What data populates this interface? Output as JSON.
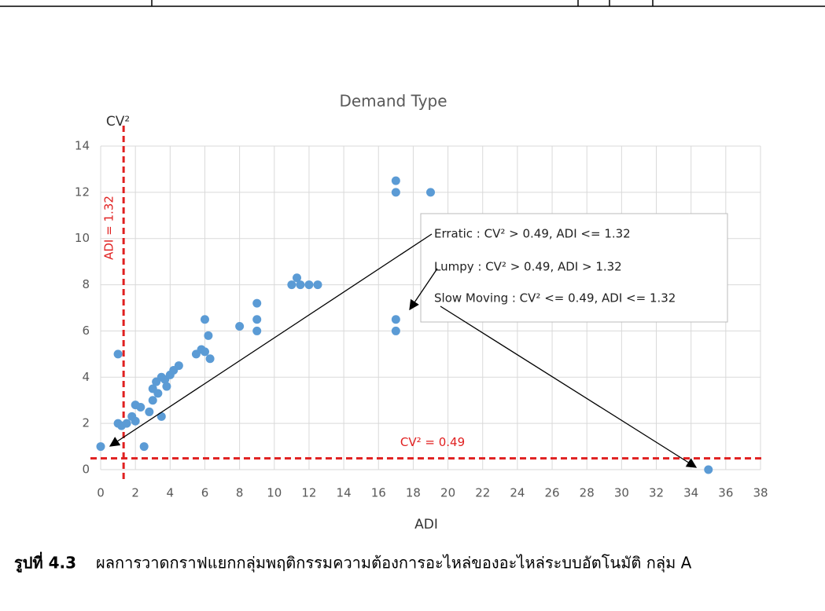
{
  "chart_data": {
    "type": "scatter",
    "title": "Demand Type",
    "x_label": "ADI",
    "y_label": "CV²",
    "x": [
      0,
      1,
      1,
      1.2,
      1.5,
      1.8,
      2,
      2.3,
      2,
      2.5,
      2.8,
      3,
      3,
      3.2,
      3.5,
      3.3,
      3.7,
      4,
      4.2,
      4.5,
      3.8,
      3.5,
      5.5,
      5.8,
      6,
      6,
      6.2,
      6.3,
      8,
      9,
      9,
      9,
      11,
      11.3,
      11.5,
      12,
      12.5,
      17,
      17,
      19,
      17,
      17,
      35
    ],
    "y": [
      1,
      5,
      2,
      1.9,
      2,
      2.3,
      2.8,
      2.7,
      2.1,
      1,
      2.5,
      3,
      3.5,
      3.8,
      4,
      3.3,
      3.9,
      4.1,
      4.3,
      4.5,
      3.6,
      2.3,
      5,
      5.2,
      6.5,
      5.1,
      5.8,
      4.8,
      6.2,
      7.2,
      6.5,
      6,
      8,
      8.3,
      8,
      8,
      8,
      12.5,
      12,
      12,
      6.5,
      6,
      0
    ],
    "color": "#5b9bd5",
    "xlim": [
      0,
      38
    ],
    "ylim": [
      0,
      14
    ],
    "xticks": [
      0,
      2,
      4,
      6,
      8,
      10,
      12,
      14,
      16,
      18,
      20,
      22,
      24,
      26,
      28,
      30,
      32,
      34,
      36,
      38
    ],
    "yticks": [
      0,
      2,
      4,
      6,
      8,
      10,
      12,
      14
    ],
    "grid": true,
    "reference_lines": [
      {
        "axis": "x",
        "value": 1.32,
        "label": "ADI = 1.32",
        "color": "#e02020"
      },
      {
        "axis": "y",
        "value": 0.49,
        "label": "CV² = 0.49",
        "color": "#e02020"
      }
    ],
    "annotations": [
      "Erratic : CV² > 0.49, ADI <= 1.32",
      "Lumpy : CV² > 0.49, ADI > 1.32",
      "Slow Moving : CV² <= 0.49, ADI <= 1.32"
    ]
  },
  "caption": {
    "label": "รูปที่ 4.3",
    "text": "ผลการวาดกราฟแยกกลุ่มพฤติกรรมความต้องการอะไหล่ของอะไหล่ระบบอัตโนมัติ กลุ่ม A"
  }
}
